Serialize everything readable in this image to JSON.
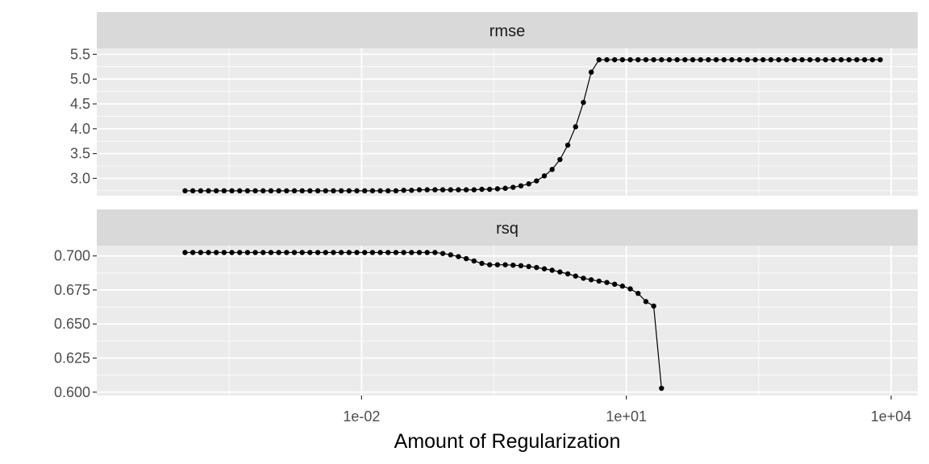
{
  "colors": {
    "panel_bg": "#ebebeb",
    "strip_bg": "#d9d9d9",
    "grid": "#ffffff",
    "line": "#000000",
    "tick_text": "#4d4d4d"
  },
  "chart_data": {
    "type": "line",
    "xlabel": "Amount of Regularization",
    "x_scale": "log10",
    "x_range": [
      1e-05,
      20000
    ],
    "x_ticks": [
      0.01,
      10,
      10000
    ],
    "x_tick_labels": [
      "1e-02",
      "1e+01",
      "1e+04"
    ],
    "x": [
      0.0001,
      0.0001226,
      0.0001503,
      0.0001842,
      0.0002259,
      0.0002769,
      0.0003395,
      0.0004163,
      0.0005104,
      0.0006257,
      0.0007671,
      0.0009405,
      0.001153,
      0.001414,
      0.001733,
      0.002125,
      0.002605,
      0.003194,
      0.003916,
      0.004801,
      0.005887,
      0.007217,
      0.008848,
      0.01085,
      0.0133,
      0.01631,
      0.01999,
      0.02451,
      0.03005,
      0.03684,
      0.04517,
      0.05538,
      0.06789,
      0.08324,
      0.1021,
      0.1251,
      0.1534,
      0.1881,
      0.2306,
      0.2827,
      0.3466,
      0.425,
      0.5211,
      0.6388,
      0.7832,
      0.9603,
      1.177,
      1.443,
      1.77,
      2.17,
      2.66,
      3.261,
      3.998,
      4.902,
      6.01,
      7.369,
      9.034,
      11.08,
      13.58,
      16.65,
      20.41,
      25.03,
      30.68,
      37.62,
      46.12,
      56.55,
      69.33,
      85.0,
      104.2,
      127.8,
      156.7,
      192.1,
      235.5,
      288.7,
      354.0,
      434.0,
      532.1,
      652.4,
      799.8,
      980.6,
      1202,
      1474,
      1807,
      2216,
      2716,
      3330,
      4083,
      5006,
      6138,
      7525
    ],
    "panels": [
      {
        "name": "rmse",
        "y_range": [
          2.65,
          5.62
        ],
        "y_ticks": [
          3.0,
          3.5,
          4.0,
          4.5,
          5.0,
          5.5
        ],
        "y_tick_labels": [
          "3.0",
          "3.5",
          "4.0",
          "4.5",
          "5.0",
          "5.5"
        ],
        "values": [
          2.75,
          2.75,
          2.75,
          2.75,
          2.75,
          2.75,
          2.75,
          2.75,
          2.75,
          2.75,
          2.75,
          2.75,
          2.75,
          2.75,
          2.75,
          2.75,
          2.75,
          2.75,
          2.75,
          2.75,
          2.75,
          2.75,
          2.75,
          2.75,
          2.75,
          2.75,
          2.75,
          2.75,
          2.76,
          2.76,
          2.77,
          2.77,
          2.77,
          2.77,
          2.77,
          2.77,
          2.77,
          2.77,
          2.78,
          2.78,
          2.79,
          2.8,
          2.82,
          2.85,
          2.89,
          2.95,
          3.05,
          3.18,
          3.38,
          3.67,
          4.04,
          4.53,
          5.14,
          5.39,
          5.39,
          5.39,
          5.39,
          5.39,
          5.39,
          5.39,
          5.39,
          5.39,
          5.39,
          5.39,
          5.39,
          5.39,
          5.39,
          5.39,
          5.39,
          5.39,
          5.39,
          5.39,
          5.39,
          5.39,
          5.39,
          5.39,
          5.39,
          5.39,
          5.39,
          5.39,
          5.39,
          5.39,
          5.39,
          5.39,
          5.39,
          5.39,
          5.39,
          5.39,
          5.39,
          5.39
        ]
      },
      {
        "name": "rsq",
        "y_range": [
          0.5975,
          0.7075
        ],
        "y_ticks": [
          0.6,
          0.625,
          0.65,
          0.675,
          0.7
        ],
        "y_tick_labels": [
          "0.600",
          "0.625",
          "0.650",
          "0.675",
          "0.700"
        ],
        "values": [
          0.7025,
          0.7025,
          0.7025,
          0.7025,
          0.7025,
          0.7025,
          0.7025,
          0.7025,
          0.7025,
          0.7025,
          0.7025,
          0.7025,
          0.7025,
          0.7025,
          0.7025,
          0.7025,
          0.7025,
          0.7025,
          0.7025,
          0.7025,
          0.7025,
          0.7025,
          0.7025,
          0.7025,
          0.7025,
          0.7025,
          0.7025,
          0.7025,
          0.7025,
          0.7025,
          0.7025,
          0.7025,
          0.7025,
          0.7018,
          0.7008,
          0.6995,
          0.698,
          0.6963,
          0.6945,
          0.6935,
          0.6935,
          0.6935,
          0.6932,
          0.6928,
          0.6922,
          0.6915,
          0.6905,
          0.6895,
          0.6882,
          0.6868,
          0.6852,
          0.6836,
          0.6825,
          0.6815,
          0.6805,
          0.6792,
          0.6778,
          0.6758,
          0.6725,
          0.6665,
          0.6632,
          0.6028
        ]
      }
    ]
  }
}
